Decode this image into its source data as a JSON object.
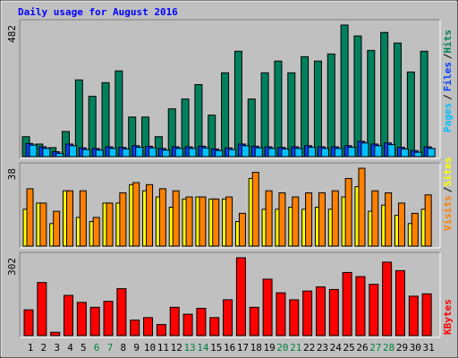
{
  "chart_data": [
    {
      "type": "bar",
      "title": "Daily usage for August 2016",
      "ylim": [
        0,
        482
      ],
      "yticks": [
        482
      ],
      "series": [
        {
          "name": "Hits",
          "color": "#00805c",
          "values": [
            73,
            46,
            33,
            92,
            281,
            221,
            271,
            314,
            145,
            145,
            73,
            175,
            211,
            264,
            152,
            307,
            386,
            211,
            307,
            350,
            307,
            366,
            350,
            376,
            482,
            442,
            389,
            455,
            416,
            310,
            386
          ]
        },
        {
          "name": "Files",
          "color": "#0040ff",
          "values": [
            48,
            36,
            18,
            46,
            32,
            30,
            36,
            34,
            40,
            38,
            30,
            36,
            36,
            38,
            28,
            32,
            46,
            38,
            36,
            34,
            36,
            40,
            36,
            36,
            40,
            56,
            46,
            50,
            34,
            22,
            36
          ]
        },
        {
          "name": "Pages",
          "color": "#00c0ff",
          "values": [
            42,
            30,
            12,
            40,
            26,
            24,
            30,
            28,
            34,
            32,
            24,
            30,
            30,
            32,
            22,
            26,
            40,
            32,
            30,
            28,
            30,
            34,
            30,
            30,
            34,
            50,
            40,
            44,
            28,
            16,
            30
          ]
        }
      ],
      "legend_separator": "/"
    },
    {
      "type": "bar",
      "ylim": [
        0,
        38
      ],
      "yticks": [
        38
      ],
      "series": [
        {
          "name": "Sites",
          "color": "#ffff00",
          "values": [
            18,
            21,
            11,
            27,
            14,
            12,
            21,
            21,
            30,
            27,
            24,
            19,
            23,
            24,
            23,
            23,
            12,
            33,
            18,
            18,
            19,
            18,
            19,
            18,
            24,
            29,
            17,
            20,
            15,
            11,
            18
          ]
        },
        {
          "name": "Visits",
          "color": "#ff8000",
          "values": [
            28,
            21,
            17,
            27,
            27,
            14,
            21,
            26,
            31,
            30,
            28,
            27,
            24,
            24,
            23,
            24,
            16,
            36,
            27,
            26,
            24,
            26,
            26,
            27,
            33,
            38,
            27,
            26,
            21,
            16,
            25
          ]
        }
      ],
      "legend_separator": "/"
    },
    {
      "type": "bar",
      "ylim": [
        0,
        302
      ],
      "yticks": [
        302
      ],
      "categories": [
        "1",
        "2",
        "3",
        "4",
        "5",
        "6",
        "7",
        "8",
        "9",
        "10",
        "11",
        "12",
        "13",
        "14",
        "15",
        "16",
        "17",
        "18",
        "19",
        "20",
        "21",
        "22",
        "23",
        "24",
        "25",
        "26",
        "27",
        "28",
        "29",
        "30",
        "31"
      ],
      "category_colors": [
        "#000",
        "#000",
        "#000",
        "#000",
        "#000",
        "#008040",
        "#008040",
        "#000",
        "#000",
        "#000",
        "#000",
        "#000",
        "#008040",
        "#008040",
        "#000",
        "#000",
        "#000",
        "#000",
        "#000",
        "#008040",
        "#008040",
        "#000",
        "#000",
        "#000",
        "#000",
        "#000",
        "#008040",
        "#008040",
        "#000",
        "#000",
        "#000"
      ],
      "series": [
        {
          "name": "KBytes",
          "color": "#ff0000",
          "values": [
            100,
            206,
            13,
            156,
            129,
            110,
            133,
            182,
            60,
            70,
            43,
            110,
            83,
            106,
            70,
            139,
            302,
            110,
            219,
            166,
            139,
            173,
            189,
            179,
            245,
            229,
            199,
            285,
            252,
            153,
            162
          ]
        }
      ]
    }
  ]
}
